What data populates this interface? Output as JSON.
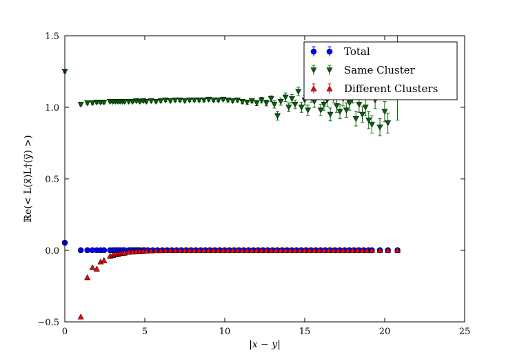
{
  "chart_data": {
    "type": "scatter",
    "xlabel": "|x − y|",
    "ylabel": "ℝe(< L(x⃗)L†(y⃗) >)",
    "xlim": [
      0,
      25
    ],
    "ylim": [
      -0.5,
      1.5
    ],
    "xticks": [
      "0",
      "5",
      "10",
      "15",
      "20",
      "25"
    ],
    "yticks": [
      "−0.5",
      "0.0",
      "0.5",
      "1.0",
      "1.5"
    ],
    "grid": false,
    "legend_position": "top-right",
    "series": [
      {
        "name": "Total",
        "color": "#0000ff",
        "marker": "circle",
        "error_bars": true,
        "points": [
          [
            0,
            0.053
          ],
          [
            1.0,
            0.001
          ],
          [
            1.41,
            0.001
          ],
          [
            1.73,
            0.001
          ],
          [
            2.0,
            0.001
          ],
          [
            2.24,
            0.001
          ],
          [
            2.45,
            0.001
          ],
          [
            2.83,
            0.001
          ],
          [
            3.0,
            0.001
          ],
          [
            3.16,
            0.001
          ],
          [
            3.32,
            0.001
          ],
          [
            3.46,
            0.001
          ],
          [
            3.61,
            0.001
          ],
          [
            3.74,
            0.001
          ],
          [
            4.0,
            0.001
          ],
          [
            4.12,
            0.001
          ],
          [
            4.24,
            0.001
          ],
          [
            4.36,
            0.001
          ],
          [
            4.47,
            0.001
          ],
          [
            4.58,
            0.001
          ],
          [
            4.69,
            0.001
          ],
          [
            4.9,
            0.001
          ],
          [
            5.0,
            0.001
          ],
          [
            5.2,
            0.001
          ],
          [
            5.5,
            0.001
          ],
          [
            5.8,
            0.001
          ],
          [
            6.1,
            0.001
          ],
          [
            6.4,
            0.001
          ],
          [
            6.7,
            0.001
          ],
          [
            7.0,
            0.001
          ],
          [
            7.3,
            0.001
          ],
          [
            7.6,
            0.001
          ],
          [
            7.9,
            0.001
          ],
          [
            8.2,
            0.001
          ],
          [
            8.5,
            0.001
          ],
          [
            8.8,
            0.001
          ],
          [
            9.1,
            0.001
          ],
          [
            9.4,
            0.001
          ],
          [
            9.7,
            0.001
          ],
          [
            10.0,
            0.001
          ],
          [
            10.3,
            0.001
          ],
          [
            10.6,
            0.001
          ],
          [
            10.9,
            0.001
          ],
          [
            11.2,
            0.001
          ],
          [
            11.5,
            0.001
          ],
          [
            11.8,
            0.001
          ],
          [
            12.1,
            0.001
          ],
          [
            12.4,
            0.001
          ],
          [
            12.7,
            0.001
          ],
          [
            13.0,
            0.001
          ],
          [
            13.3,
            0.001
          ],
          [
            13.6,
            0.001
          ],
          [
            13.9,
            0.001
          ],
          [
            14.2,
            0.001
          ],
          [
            14.5,
            0.001
          ],
          [
            14.8,
            0.001
          ],
          [
            15.1,
            0.001
          ],
          [
            15.4,
            0.001
          ],
          [
            15.7,
            0.001
          ],
          [
            16.0,
            0.001
          ],
          [
            16.3,
            0.001
          ],
          [
            16.6,
            0.001
          ],
          [
            16.9,
            0.001
          ],
          [
            17.2,
            0.001
          ],
          [
            17.5,
            0.001
          ],
          [
            17.8,
            0.001
          ],
          [
            18.1,
            0.001
          ],
          [
            18.4,
            0.001
          ],
          [
            18.7,
            0.001
          ],
          [
            19.0,
            0.001
          ],
          [
            19.2,
            0.001
          ],
          [
            19.7,
            0.001
          ],
          [
            20.2,
            0.001
          ],
          [
            20.8,
            0.001
          ]
        ]
      },
      {
        "name": "Same Cluster",
        "color": "#006400",
        "marker": "triangle-down",
        "error_bars": true,
        "points": [
          [
            0,
            1.25,
            0.01
          ],
          [
            1.0,
            1.02,
            0.01
          ],
          [
            1.41,
            1.03,
            0.01
          ],
          [
            1.73,
            1.03,
            0.01
          ],
          [
            2.0,
            1.035,
            0.01
          ],
          [
            2.24,
            1.035,
            0.01
          ],
          [
            2.45,
            1.035,
            0.01
          ],
          [
            2.83,
            1.04,
            0.01
          ],
          [
            3.0,
            1.04,
            0.01
          ],
          [
            3.16,
            1.04,
            0.01
          ],
          [
            3.32,
            1.04,
            0.01
          ],
          [
            3.46,
            1.04,
            0.01
          ],
          [
            3.61,
            1.04,
            0.01
          ],
          [
            3.74,
            1.04,
            0.01
          ],
          [
            4.0,
            1.04,
            0.01
          ],
          [
            4.24,
            1.04,
            0.01
          ],
          [
            4.47,
            1.045,
            0.01
          ],
          [
            4.69,
            1.04,
            0.01
          ],
          [
            4.9,
            1.045,
            0.01
          ],
          [
            5.1,
            1.04,
            0.01
          ],
          [
            5.4,
            1.045,
            0.01
          ],
          [
            5.7,
            1.04,
            0.01
          ],
          [
            6.0,
            1.045,
            0.01
          ],
          [
            6.3,
            1.05,
            0.01
          ],
          [
            6.6,
            1.045,
            0.01
          ],
          [
            6.9,
            1.05,
            0.01
          ],
          [
            7.2,
            1.05,
            0.01
          ],
          [
            7.5,
            1.045,
            0.01
          ],
          [
            7.8,
            1.05,
            0.01
          ],
          [
            8.1,
            1.05,
            0.01
          ],
          [
            8.4,
            1.05,
            0.01
          ],
          [
            8.7,
            1.05,
            0.01
          ],
          [
            9.0,
            1.055,
            0.01
          ],
          [
            9.3,
            1.05,
            0.01
          ],
          [
            9.6,
            1.05,
            0.01
          ],
          [
            9.9,
            1.055,
            0.01
          ],
          [
            10.2,
            1.05,
            0.012
          ],
          [
            10.5,
            1.045,
            0.012
          ],
          [
            10.8,
            1.05,
            0.012
          ],
          [
            11.1,
            1.04,
            0.015
          ],
          [
            11.4,
            1.035,
            0.015
          ],
          [
            11.7,
            1.045,
            0.015
          ],
          [
            12.0,
            1.03,
            0.018
          ],
          [
            12.3,
            1.05,
            0.02
          ],
          [
            12.6,
            1.03,
            0.02
          ],
          [
            12.9,
            1.06,
            0.02
          ],
          [
            13.1,
            1.02,
            0.025
          ],
          [
            13.3,
            0.94,
            0.03
          ],
          [
            13.5,
            1.04,
            0.025
          ],
          [
            13.8,
            1.07,
            0.03
          ],
          [
            14.0,
            1.0,
            0.03
          ],
          [
            14.2,
            1.06,
            0.03
          ],
          [
            14.4,
            1.02,
            0.03
          ],
          [
            14.6,
            1.11,
            0.03
          ],
          [
            14.8,
            1.0,
            0.035
          ],
          [
            15.0,
            1.05,
            0.035
          ],
          [
            15.2,
            0.98,
            0.035
          ],
          [
            15.4,
            1.07,
            0.035
          ],
          [
            15.6,
            1.04,
            0.04
          ],
          [
            15.8,
            1.1,
            0.04
          ],
          [
            16.0,
            0.98,
            0.04
          ],
          [
            16.2,
            1.02,
            0.04
          ],
          [
            16.4,
            1.05,
            0.045
          ],
          [
            16.6,
            0.95,
            0.045
          ],
          [
            16.8,
            1.08,
            0.045
          ],
          [
            17.0,
            1.01,
            0.045
          ],
          [
            17.2,
            0.97,
            0.05
          ],
          [
            17.4,
            1.06,
            0.05
          ],
          [
            17.6,
            0.98,
            0.05
          ],
          [
            17.8,
            1.03,
            0.05
          ],
          [
            18.0,
            1.08,
            0.05
          ],
          [
            18.2,
            0.92,
            0.05
          ],
          [
            18.4,
            1.02,
            0.055
          ],
          [
            18.6,
            0.95,
            0.055
          ],
          [
            18.8,
            1.0,
            0.06
          ],
          [
            19.0,
            0.91,
            0.06
          ],
          [
            19.2,
            0.88,
            0.06
          ],
          [
            19.4,
            1.05,
            0.06
          ],
          [
            19.7,
            0.86,
            0.06
          ],
          [
            20.0,
            0.97,
            0.07
          ],
          [
            20.2,
            0.89,
            0.07
          ],
          [
            20.8,
            1.21,
            0.3
          ]
        ]
      },
      {
        "name": "Different Clusters",
        "color": "#ff0000",
        "marker": "triangle-up",
        "error_bars": true,
        "points": [
          [
            1.0,
            -0.465
          ],
          [
            1.41,
            -0.19
          ],
          [
            1.73,
            -0.12
          ],
          [
            2.0,
            -0.13
          ],
          [
            2.24,
            -0.08
          ],
          [
            2.45,
            -0.07
          ],
          [
            2.83,
            -0.04
          ],
          [
            3.0,
            -0.035
          ],
          [
            3.16,
            -0.03
          ],
          [
            3.32,
            -0.028
          ],
          [
            3.46,
            -0.022
          ],
          [
            3.61,
            -0.02
          ],
          [
            3.74,
            -0.018
          ],
          [
            4.0,
            -0.012
          ],
          [
            4.24,
            -0.01
          ],
          [
            4.47,
            -0.008
          ],
          [
            4.69,
            -0.006
          ],
          [
            4.9,
            -0.005
          ],
          [
            5.1,
            -0.004
          ],
          [
            5.4,
            -0.003
          ],
          [
            5.7,
            -0.002
          ],
          [
            6.0,
            -0.002
          ],
          [
            6.3,
            -0.001
          ],
          [
            6.6,
            -0.001
          ],
          [
            6.9,
            -0.001
          ],
          [
            7.2,
            0.0
          ],
          [
            7.5,
            0.0
          ],
          [
            7.8,
            0.0
          ],
          [
            8.1,
            0.0
          ],
          [
            8.4,
            0.0
          ],
          [
            8.7,
            0.0
          ],
          [
            9.0,
            0.0
          ],
          [
            9.3,
            0.0
          ],
          [
            9.6,
            0.0
          ],
          [
            9.9,
            0.0
          ],
          [
            10.2,
            0.0
          ],
          [
            10.5,
            0.0
          ],
          [
            10.8,
            0.0
          ],
          [
            11.1,
            0.0
          ],
          [
            11.4,
            0.0
          ],
          [
            11.7,
            0.0
          ],
          [
            12.0,
            0.0
          ],
          [
            12.3,
            0.0
          ],
          [
            12.6,
            0.0
          ],
          [
            12.9,
            0.0
          ],
          [
            13.2,
            0.0
          ],
          [
            13.5,
            0.0
          ],
          [
            13.8,
            0.0
          ],
          [
            14.1,
            0.0
          ],
          [
            14.4,
            0.0
          ],
          [
            14.7,
            0.0
          ],
          [
            15.0,
            0.0
          ],
          [
            15.3,
            0.0
          ],
          [
            15.6,
            0.0
          ],
          [
            15.9,
            0.0
          ],
          [
            16.2,
            0.0
          ],
          [
            16.5,
            0.0
          ],
          [
            16.8,
            0.0
          ],
          [
            17.1,
            0.0
          ],
          [
            17.4,
            0.0
          ],
          [
            17.7,
            0.0
          ],
          [
            18.0,
            0.0
          ],
          [
            18.3,
            0.0
          ],
          [
            18.6,
            0.0
          ],
          [
            18.9,
            0.0
          ],
          [
            19.2,
            0.0
          ],
          [
            19.7,
            0.0
          ],
          [
            20.2,
            0.0
          ],
          [
            20.8,
            0.0
          ]
        ]
      }
    ]
  }
}
